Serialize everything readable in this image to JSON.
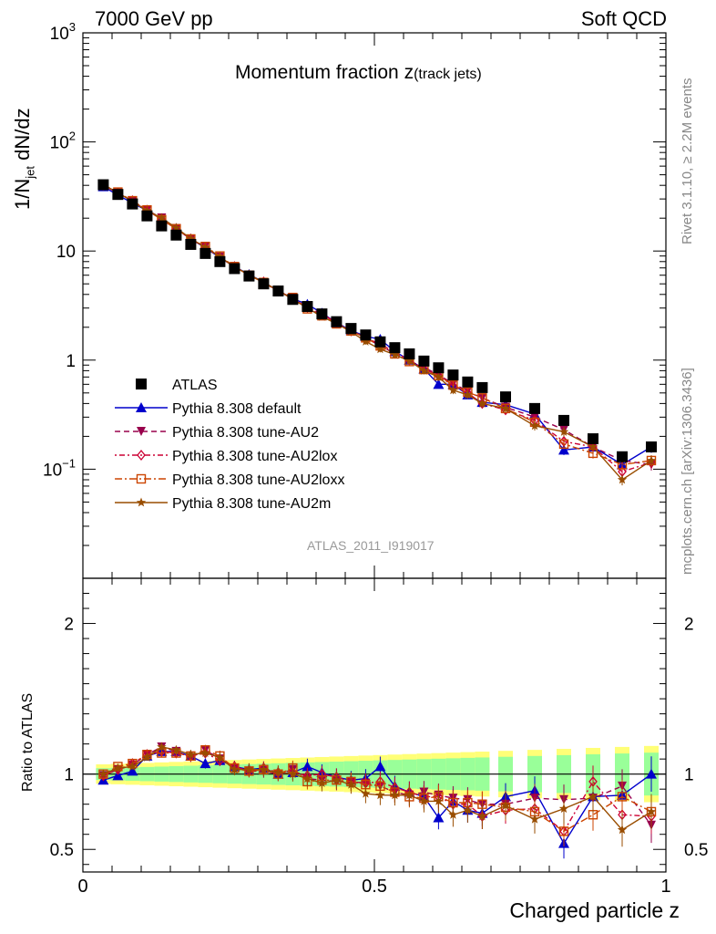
{
  "header": {
    "energy": "7000 GeV pp",
    "process": "Soft QCD"
  },
  "side": {
    "rivet": "Rivet 3.1.10, ≥ 2.2M events",
    "mcplots": "mcplots.cern.ch [arXiv:1306.3436]"
  },
  "chart_data": {
    "type": "scatter",
    "title": "Momentum fraction z",
    "title_sub": "(track jets)",
    "analysis_label": "ATLAS_2011_I919017",
    "xlabel": "Charged particle z",
    "ylabel": "1/N_jet dN/dz",
    "ylabel_parts": [
      "1/N",
      "jet",
      " dN/dz"
    ],
    "ratio_ylabel": "Ratio to ATLAS",
    "xlim": [
      0,
      1
    ],
    "ylim": [
      0.01,
      1000
    ],
    "yscale": "log",
    "ratio_ylim": [
      0.35,
      2.3
    ],
    "main_yticks": [
      {
        "v": 1000,
        "base": "10",
        "exp": "3"
      },
      {
        "v": 100,
        "base": "10",
        "exp": "2"
      },
      {
        "v": 10,
        "base": "10",
        "exp": ""
      },
      {
        "v": 1,
        "base": "1",
        "exp": ""
      },
      {
        "v": 0.1,
        "base": "10",
        "exp": "−1"
      }
    ],
    "ratio_yticks": [
      "0.5",
      "1",
      "2"
    ],
    "xticks": [
      "0",
      "0.5",
      "1"
    ],
    "x": [
      0.035,
      0.06,
      0.085,
      0.11,
      0.135,
      0.16,
      0.185,
      0.21,
      0.235,
      0.26,
      0.285,
      0.31,
      0.335,
      0.36,
      0.385,
      0.41,
      0.435,
      0.46,
      0.485,
      0.51,
      0.535,
      0.56,
      0.585,
      0.61,
      0.635,
      0.66,
      0.685,
      0.725,
      0.775,
      0.825,
      0.875,
      0.925,
      0.975
    ],
    "series": [
      {
        "name": "ATLAS",
        "color": "#000000",
        "marker": "square",
        "values": [
          40.5,
          33.0,
          27.0,
          21.0,
          17.0,
          14.0,
          11.5,
          9.5,
          8.0,
          6.9,
          5.9,
          5.0,
          4.3,
          3.6,
          3.1,
          2.65,
          2.25,
          1.95,
          1.7,
          1.47,
          1.3,
          1.14,
          0.98,
          0.85,
          0.73,
          0.63,
          0.56,
          0.46,
          0.36,
          0.28,
          0.19,
          0.13,
          0.16
        ],
        "ratio": [
          1,
          1,
          1,
          1,
          1,
          1,
          1,
          1,
          1,
          1,
          1,
          1,
          1,
          1,
          1,
          1,
          1,
          1,
          1,
          1,
          1,
          1,
          1,
          1,
          1,
          1,
          1,
          1,
          1,
          1,
          1,
          1,
          1
        ]
      },
      {
        "name": "Pythia 8.308 default",
        "color": "#0000cc",
        "marker": "triangle-up",
        "dash": "",
        "values": [
          38.9,
          32.7,
          27.5,
          23.5,
          19.6,
          16.1,
          12.9,
          10.7,
          8.7,
          7.2,
          6.1,
          5.2,
          4.3,
          3.65,
          3.25,
          2.7,
          2.2,
          1.87,
          1.65,
          1.55,
          1.2,
          1.0,
          0.83,
          0.6,
          0.6,
          0.48,
          0.41,
          0.39,
          0.32,
          0.15,
          0.16,
          0.11,
          0.16
        ],
        "ratio": [
          0.96,
          0.99,
          1.02,
          1.12,
          1.15,
          1.15,
          1.12,
          1.07,
          1.09,
          1.05,
          1.03,
          1.04,
          1.0,
          1.01,
          1.05,
          1.01,
          0.98,
          0.96,
          0.97,
          1.05,
          0.92,
          0.88,
          0.85,
          0.71,
          0.82,
          0.76,
          0.74,
          0.85,
          0.89,
          0.54,
          0.85,
          0.86,
          1.0
        ]
      },
      {
        "name": "Pythia 8.308 tune-AU2",
        "color": "#99004c",
        "marker": "triangle-down",
        "dash": "6,4",
        "values": [
          40.1,
          34.0,
          28.6,
          23.7,
          20.1,
          16.1,
          12.8,
          11.0,
          8.8,
          7.2,
          6.0,
          5.1,
          4.3,
          3.7,
          3.0,
          2.55,
          2.14,
          1.85,
          1.6,
          1.35,
          1.15,
          0.98,
          0.86,
          0.73,
          0.61,
          0.52,
          0.45,
          0.37,
          0.3,
          0.23,
          0.16,
          0.12,
          0.11
        ],
        "ratio": [
          0.99,
          1.03,
          1.06,
          1.13,
          1.18,
          1.15,
          1.11,
          1.16,
          1.1,
          1.04,
          1.02,
          1.02,
          1.0,
          1.03,
          0.97,
          0.96,
          0.95,
          0.95,
          0.94,
          0.92,
          0.88,
          0.86,
          0.88,
          0.86,
          0.84,
          0.83,
          0.8,
          0.8,
          0.84,
          0.83,
          0.84,
          0.92,
          0.66
        ]
      },
      {
        "name": "Pythia 8.308 tune-AU2lox",
        "color": "#cc0033",
        "marker": "diamond",
        "dash": "2,3,6,3",
        "values": [
          40.1,
          34.0,
          28.9,
          23.7,
          19.5,
          16.0,
          12.9,
          10.8,
          8.7,
          7.2,
          6.0,
          5.2,
          4.3,
          3.65,
          3.05,
          2.65,
          2.2,
          1.85,
          1.6,
          1.4,
          1.18,
          1.0,
          0.83,
          0.72,
          0.58,
          0.5,
          0.4,
          0.35,
          0.28,
          0.18,
          0.16,
          0.095,
          0.115
        ],
        "ratio": [
          0.99,
          1.03,
          1.07,
          1.13,
          1.15,
          1.14,
          1.12,
          1.14,
          1.09,
          1.05,
          1.02,
          1.04,
          1.01,
          1.01,
          0.99,
          1.0,
          0.98,
          0.95,
          0.94,
          0.95,
          0.91,
          0.88,
          0.85,
          0.85,
          0.8,
          0.8,
          0.72,
          0.76,
          0.77,
          0.62,
          0.95,
          0.73,
          0.72
        ]
      },
      {
        "name": "Pythia 8.308 tune-AU2loxx",
        "color": "#cc4400",
        "marker": "square-open",
        "dash": "8,3,2,3",
        "values": [
          40.5,
          34.7,
          28.9,
          23.8,
          19.4,
          16.0,
          12.9,
          11.0,
          9.0,
          7.2,
          6.0,
          5.15,
          4.3,
          3.75,
          2.95,
          2.55,
          2.15,
          1.85,
          1.6,
          1.35,
          1.14,
          0.97,
          0.82,
          0.72,
          0.59,
          0.51,
          0.45,
          0.36,
          0.27,
          0.17,
          0.14,
          0.11,
          0.12
        ],
        "ratio": [
          1.0,
          1.05,
          1.07,
          1.13,
          1.14,
          1.14,
          1.12,
          1.16,
          1.12,
          1.04,
          1.02,
          1.03,
          1.0,
          1.04,
          0.95,
          0.96,
          0.96,
          0.95,
          0.93,
          0.92,
          0.88,
          0.85,
          0.84,
          0.85,
          0.81,
          0.81,
          0.8,
          0.78,
          0.75,
          0.62,
          0.73,
          0.85,
          0.75
        ]
      },
      {
        "name": "Pythia 8.308 tune-AU2m",
        "color": "#994d00",
        "marker": "star",
        "dash": "",
        "values": [
          40.5,
          34.3,
          28.4,
          23.4,
          20.1,
          16.3,
          13.0,
          10.8,
          8.9,
          7.1,
          6.1,
          5.15,
          4.35,
          3.6,
          3.0,
          2.5,
          2.16,
          1.82,
          1.48,
          1.26,
          1.12,
          0.98,
          0.8,
          0.7,
          0.53,
          0.48,
          0.4,
          0.36,
          0.25,
          0.22,
          0.16,
          0.08,
          0.12
        ],
        "ratio": [
          1.0,
          1.04,
          1.05,
          1.11,
          1.18,
          1.16,
          1.13,
          1.14,
          1.11,
          1.03,
          1.03,
          1.03,
          1.01,
          1.0,
          0.97,
          0.94,
          0.96,
          0.93,
          0.87,
          0.86,
          0.86,
          0.86,
          0.82,
          0.82,
          0.73,
          0.76,
          0.72,
          0.79,
          0.7,
          0.77,
          0.85,
          0.63,
          0.75
        ]
      }
    ]
  }
}
